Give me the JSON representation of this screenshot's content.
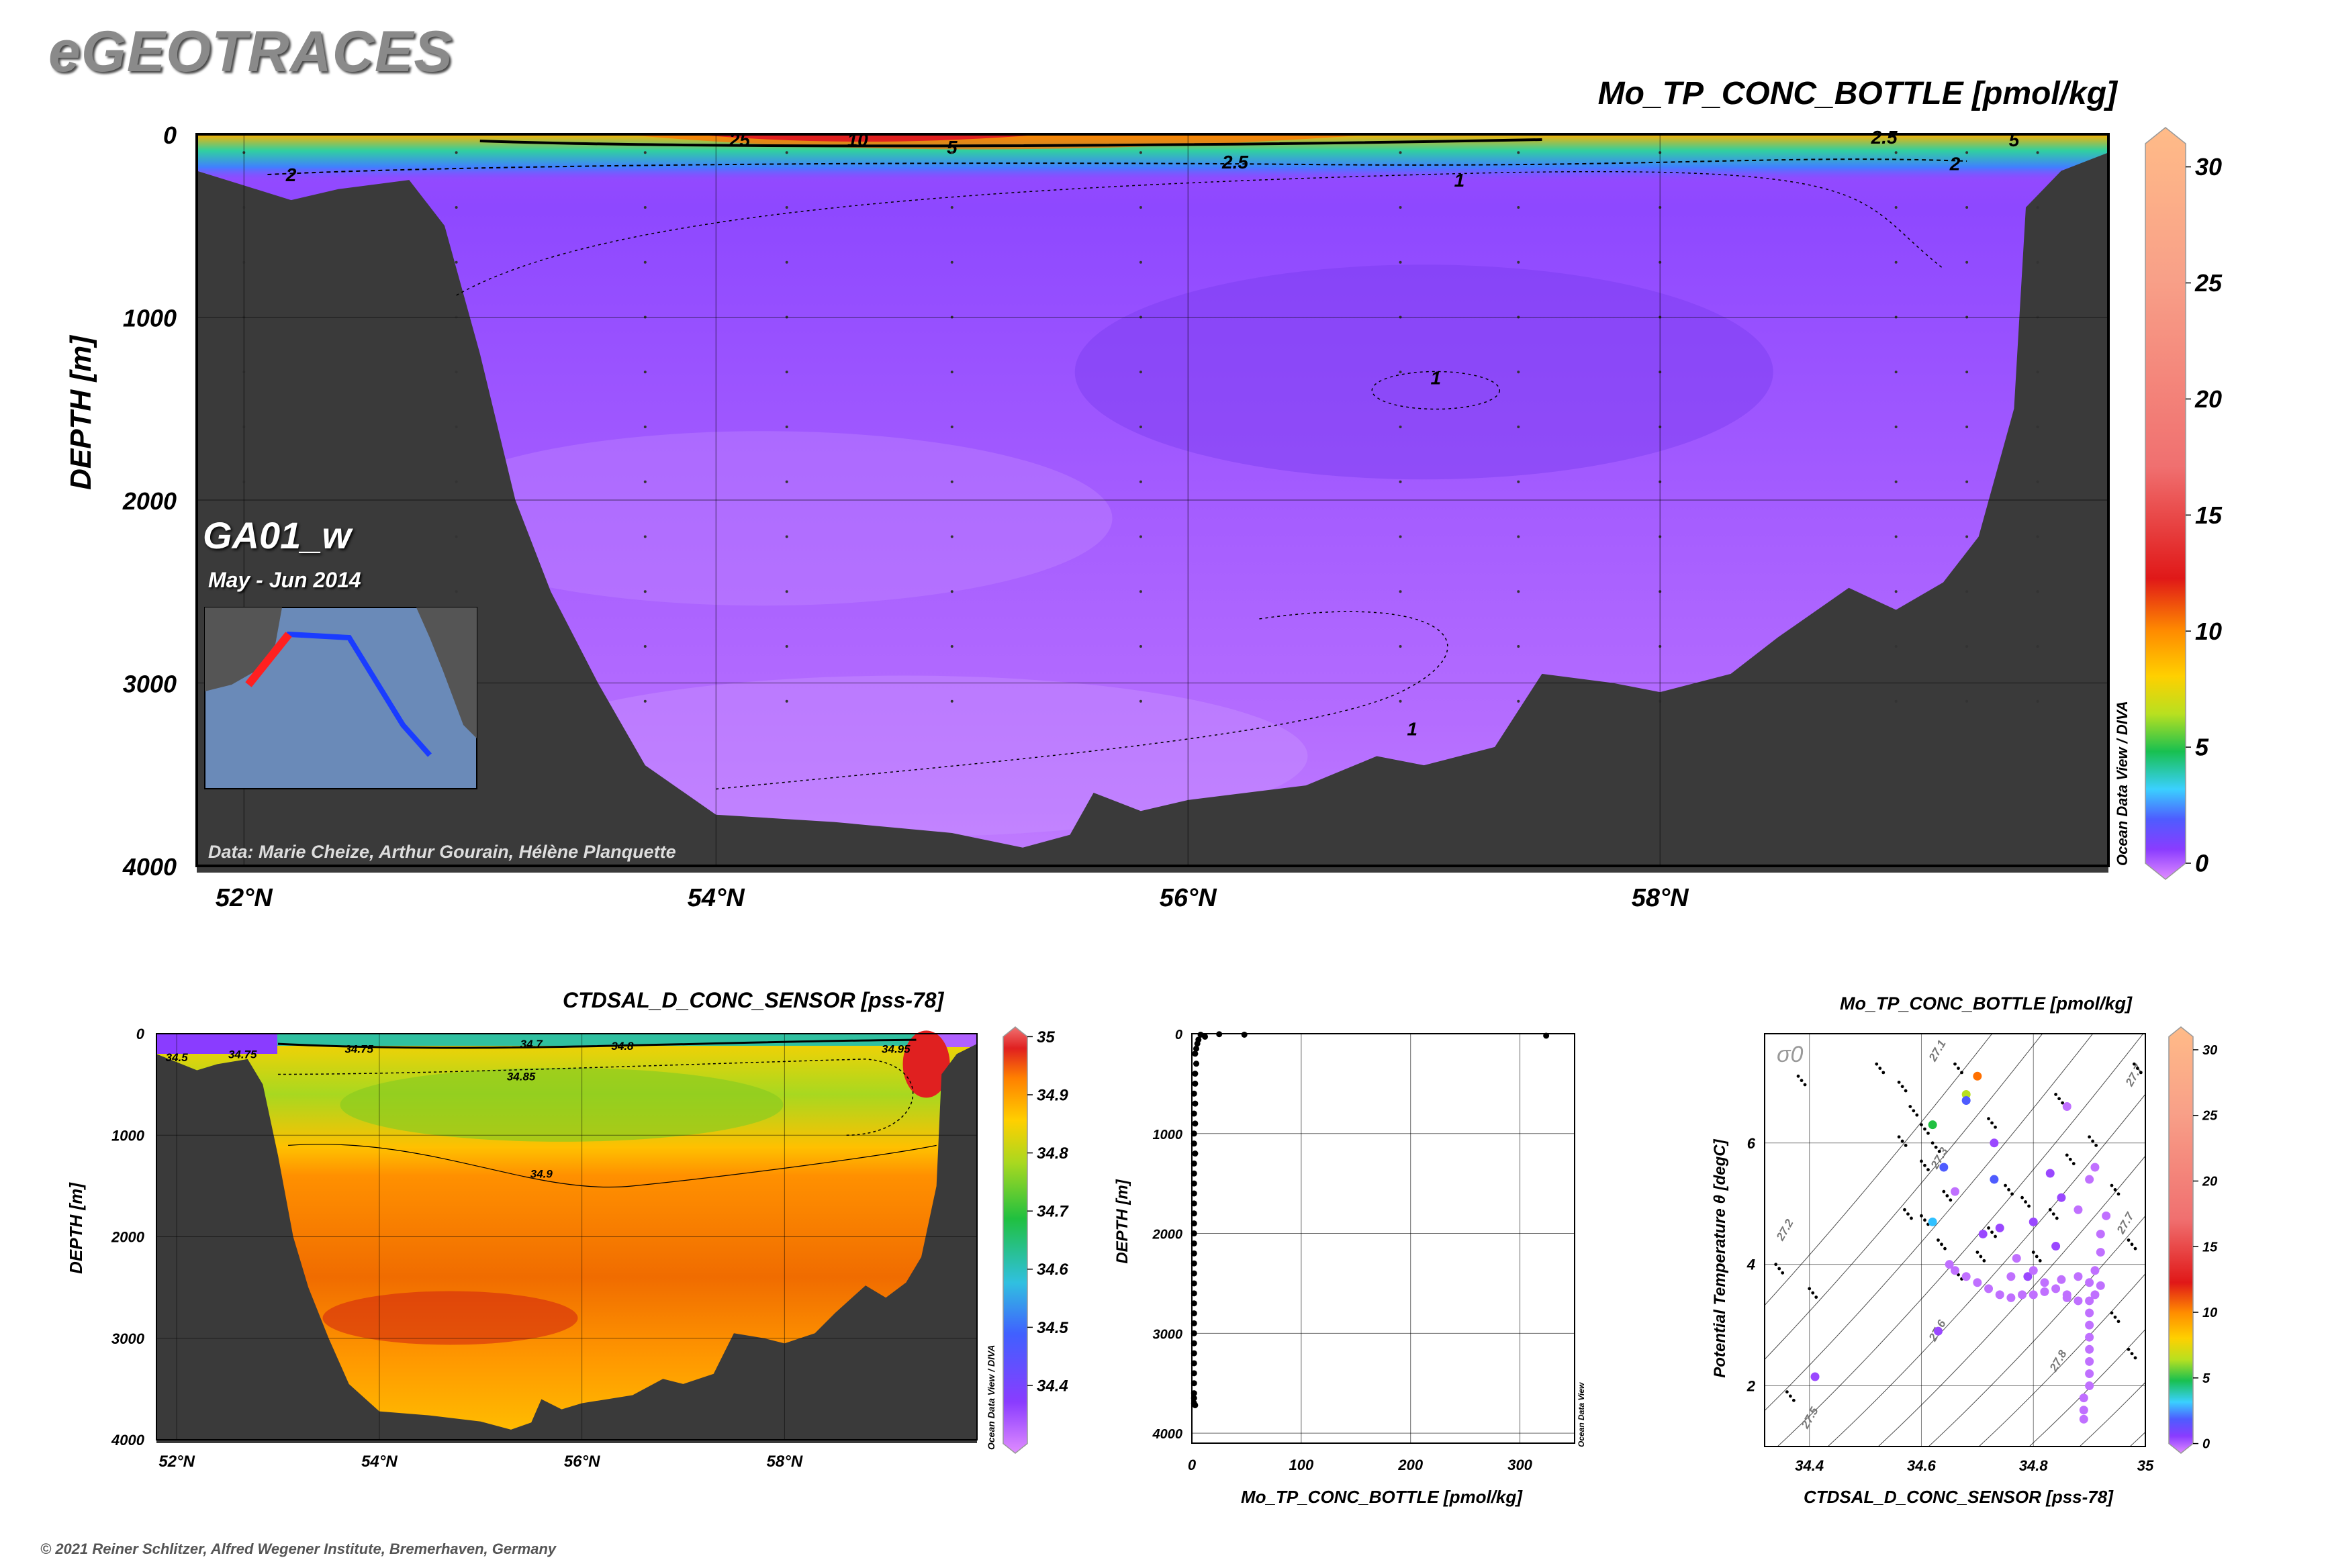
{
  "brand": "eGEOTRACES",
  "footer": "© 2021 Reiner Schlitzer, Alfred Wegener Institute, Bremerhaven, Germany",
  "odv_credit_diva": "Ocean Data View / DIVA",
  "odv_credit": "Ocean Data View",
  "chart_data": [
    {
      "id": "main-section",
      "type": "heatmap",
      "title": "Mo_TP_CONC_BOTTLE [pmol/kg]",
      "ylabel": "DEPTH [m]",
      "section_name": "GA01_w",
      "period": "May - Jun 2014",
      "credit": "Data: Marie Cheize, Arthur Gourain, Hélène Planquette",
      "x_ticks": [
        "52°N",
        "54°N",
        "56°N",
        "58°N"
      ],
      "x_tick_values": [
        52,
        54,
        56,
        58
      ],
      "xlim": [
        51.8,
        59.9
      ],
      "y_ticks": [
        "0",
        "1000",
        "2000",
        "3000",
        "4000"
      ],
      "y_tick_values": [
        0,
        1000,
        2000,
        3000,
        4000
      ],
      "ylim": [
        0,
        4000
      ],
      "colorbar_ticks": [
        "0",
        "5",
        "10",
        "15",
        "20",
        "25",
        "30"
      ],
      "colorbar_values": [
        0,
        5,
        10,
        15,
        20,
        25,
        30
      ],
      "colorbar_range": [
        0,
        31
      ],
      "contour_labels": [
        "25",
        "10",
        "5",
        "2.5",
        "2",
        "1",
        "1",
        "1",
        "2.5",
        "2",
        "5"
      ],
      "bathymetry": [
        [
          51.8,
          200
        ],
        [
          52.0,
          280
        ],
        [
          52.2,
          360
        ],
        [
          52.4,
          300
        ],
        [
          52.7,
          250
        ],
        [
          52.85,
          500
        ],
        [
          53.0,
          1200
        ],
        [
          53.15,
          2000
        ],
        [
          53.3,
          2500
        ],
        [
          53.5,
          3000
        ],
        [
          53.7,
          3450
        ],
        [
          54.0,
          3720
        ],
        [
          54.5,
          3760
        ],
        [
          55.0,
          3820
        ],
        [
          55.3,
          3900
        ],
        [
          55.5,
          3830
        ],
        [
          55.6,
          3600
        ],
        [
          55.8,
          3700
        ],
        [
          56.0,
          3640
        ],
        [
          56.5,
          3560
        ],
        [
          56.8,
          3400
        ],
        [
          57.0,
          3450
        ],
        [
          57.3,
          3350
        ],
        [
          57.5,
          2950
        ],
        [
          57.8,
          3000
        ],
        [
          58.0,
          3050
        ],
        [
          58.3,
          2950
        ],
        [
          58.5,
          2750
        ],
        [
          58.8,
          2480
        ],
        [
          59.0,
          2600
        ],
        [
          59.2,
          2450
        ],
        [
          59.35,
          2200
        ],
        [
          59.5,
          1500
        ],
        [
          59.55,
          400
        ],
        [
          59.7,
          200
        ],
        [
          59.9,
          100
        ]
      ],
      "station_longitudes_marker": [
        52.0,
        52.9,
        53.7,
        54.3,
        55.0,
        55.8,
        56.9,
        57.4,
        58.0,
        59.0,
        59.3,
        59.6
      ]
    },
    {
      "id": "salinity-section",
      "type": "heatmap",
      "title": "CTDSAL_D_CONC_SENSOR [pss-78]",
      "ylabel": "DEPTH [m]",
      "x_ticks": [
        "52°N",
        "54°N",
        "56°N",
        "58°N"
      ],
      "x_tick_values": [
        52,
        54,
        56,
        58
      ],
      "xlim": [
        51.8,
        59.9
      ],
      "y_ticks": [
        "0",
        "1000",
        "2000",
        "3000",
        "4000"
      ],
      "y_tick_values": [
        0,
        1000,
        2000,
        3000,
        4000
      ],
      "ylim": [
        0,
        4000
      ],
      "colorbar_ticks": [
        "34.4",
        "34.5",
        "34.6",
        "34.7",
        "34.8",
        "34.9",
        "35"
      ],
      "colorbar_values": [
        34.4,
        34.5,
        34.6,
        34.7,
        34.8,
        34.9,
        35.0
      ],
      "colorbar_range": [
        34.3,
        35.0
      ],
      "contour_labels": [
        "34.5",
        "34.75",
        "34.75",
        "34.7",
        "34.8",
        "34.85",
        "34.9",
        "34.95"
      ]
    },
    {
      "id": "profile",
      "type": "scatter",
      "xlabel": "Mo_TP_CONC_BOTTLE [pmol/kg]",
      "ylabel": "DEPTH [m]",
      "x_ticks": [
        "0",
        "100",
        "200",
        "300"
      ],
      "x_tick_values": [
        0,
        100,
        200,
        300
      ],
      "xlim": [
        0,
        350
      ],
      "y_ticks": [
        "0",
        "1000",
        "2000",
        "3000",
        "4000"
      ],
      "y_tick_values": [
        0,
        1000,
        2000,
        3000,
        4000
      ],
      "ylim": [
        0,
        4100
      ],
      "points": [
        [
          324,
          20
        ],
        [
          48,
          10
        ],
        [
          25,
          5
        ],
        [
          12,
          30
        ],
        [
          8,
          10
        ],
        [
          6,
          60
        ],
        [
          5,
          100
        ],
        [
          4,
          150
        ],
        [
          3,
          200
        ],
        [
          4,
          300
        ],
        [
          3,
          400
        ],
        [
          3,
          500
        ],
        [
          2,
          600
        ],
        [
          3,
          700
        ],
        [
          2,
          800
        ],
        [
          3,
          900
        ],
        [
          2,
          1000
        ],
        [
          2,
          1100
        ],
        [
          3,
          1200
        ],
        [
          2,
          1300
        ],
        [
          2,
          1400
        ],
        [
          2,
          1500
        ],
        [
          2,
          1600
        ],
        [
          2,
          1700
        ],
        [
          2,
          1800
        ],
        [
          2,
          1900
        ],
        [
          2,
          2000
        ],
        [
          2,
          2100
        ],
        [
          2,
          2200
        ],
        [
          2,
          2300
        ],
        [
          2,
          2400
        ],
        [
          2,
          2500
        ],
        [
          2,
          2600
        ],
        [
          2,
          2700
        ],
        [
          2,
          2800
        ],
        [
          2,
          2900
        ],
        [
          2,
          3000
        ],
        [
          2,
          3100
        ],
        [
          2,
          3200
        ],
        [
          2,
          3300
        ],
        [
          2,
          3400
        ],
        [
          2,
          3500
        ],
        [
          2,
          3600
        ],
        [
          2,
          3650
        ],
        [
          2,
          3700
        ],
        [
          3,
          3720
        ]
      ]
    },
    {
      "id": "ts-diagram",
      "type": "scatter",
      "title": "Mo_TP_CONC_BOTTLE [pmol/kg]",
      "xlabel": "CTDSAL_D_CONC_SENSOR [pss-78]",
      "ylabel": "Potential Temperature θ [degC]",
      "sigma_label": "σ0",
      "x_ticks": [
        "34.4",
        "34.6",
        "34.8",
        "35"
      ],
      "x_tick_values": [
        34.4,
        34.6,
        34.8,
        35.0
      ],
      "xlim": [
        34.32,
        35.0
      ],
      "y_ticks": [
        "2",
        "4",
        "6"
      ],
      "y_tick_values": [
        2,
        4,
        6
      ],
      "ylim": [
        1.0,
        7.8
      ],
      "isopycnal_labels": [
        "27.1",
        "27.2",
        "27.3",
        "27.5",
        "27.6",
        "27.7",
        "27.7",
        "27.8"
      ],
      "colorbar_ticks": [
        "0",
        "5",
        "10",
        "15",
        "20",
        "25",
        "30"
      ],
      "colorbar_values": [
        0,
        5,
        10,
        15,
        20,
        25,
        30
      ],
      "colorbar_range": [
        0,
        31
      ],
      "points": [
        [
          34.41,
          2.15,
          3
        ],
        [
          34.63,
          2.9,
          3
        ],
        [
          34.62,
          4.7,
          8
        ],
        [
          34.64,
          5.6,
          5
        ],
        [
          34.66,
          5.2,
          2
        ],
        [
          34.62,
          6.3,
          14
        ],
        [
          34.68,
          6.8,
          20
        ],
        [
          34.7,
          7.1,
          25
        ],
        [
          34.68,
          6.7,
          7
        ],
        [
          34.73,
          6.0,
          3
        ],
        [
          34.73,
          5.4,
          5
        ],
        [
          34.71,
          4.5,
          4
        ],
        [
          34.74,
          4.6,
          3
        ],
        [
          34.77,
          4.1,
          2
        ],
        [
          34.79,
          3.8,
          3
        ],
        [
          34.82,
          3.7,
          2
        ],
        [
          34.85,
          3.75,
          2
        ],
        [
          34.88,
          3.8,
          2
        ],
        [
          34.9,
          3.7,
          2
        ],
        [
          34.92,
          3.65,
          2
        ],
        [
          34.91,
          3.5,
          2
        ],
        [
          34.9,
          3.4,
          2
        ],
        [
          34.88,
          3.4,
          2
        ],
        [
          34.86,
          3.5,
          2
        ],
        [
          34.84,
          3.6,
          2
        ],
        [
          34.82,
          3.55,
          2
        ],
        [
          34.8,
          3.5,
          2
        ],
        [
          34.78,
          3.5,
          2
        ],
        [
          34.76,
          3.45,
          2
        ],
        [
          34.74,
          3.5,
          2
        ],
        [
          34.72,
          3.6,
          2
        ],
        [
          34.7,
          3.7,
          2
        ],
        [
          34.68,
          3.8,
          2
        ],
        [
          34.66,
          3.9,
          2
        ],
        [
          34.65,
          4.0,
          2
        ],
        [
          34.9,
          3.2,
          2
        ],
        [
          34.9,
          3.0,
          2
        ],
        [
          34.9,
          2.8,
          2
        ],
        [
          34.9,
          2.6,
          2
        ],
        [
          34.9,
          2.4,
          2
        ],
        [
          34.9,
          2.2,
          2
        ],
        [
          34.9,
          2.0,
          2
        ],
        [
          34.89,
          1.8,
          2
        ],
        [
          34.89,
          1.6,
          2
        ],
        [
          34.89,
          1.45,
          2
        ],
        [
          34.91,
          3.9,
          2
        ],
        [
          34.92,
          4.2,
          2
        ],
        [
          34.92,
          4.5,
          2
        ],
        [
          34.91,
          5.6,
          2
        ],
        [
          34.84,
          4.3,
          3
        ],
        [
          34.8,
          4.7,
          4
        ],
        [
          34.85,
          5.1,
          3
        ],
        [
          34.88,
          4.9,
          2
        ],
        [
          34.83,
          5.5,
          3
        ],
        [
          34.86,
          6.6,
          2
        ],
        [
          34.9,
          5.4,
          2
        ],
        [
          34.93,
          4.8,
          2
        ],
        [
          34.86,
          3.45,
          2
        ],
        [
          34.8,
          3.9,
          2
        ],
        [
          34.76,
          3.8,
          2
        ]
      ]
    }
  ]
}
